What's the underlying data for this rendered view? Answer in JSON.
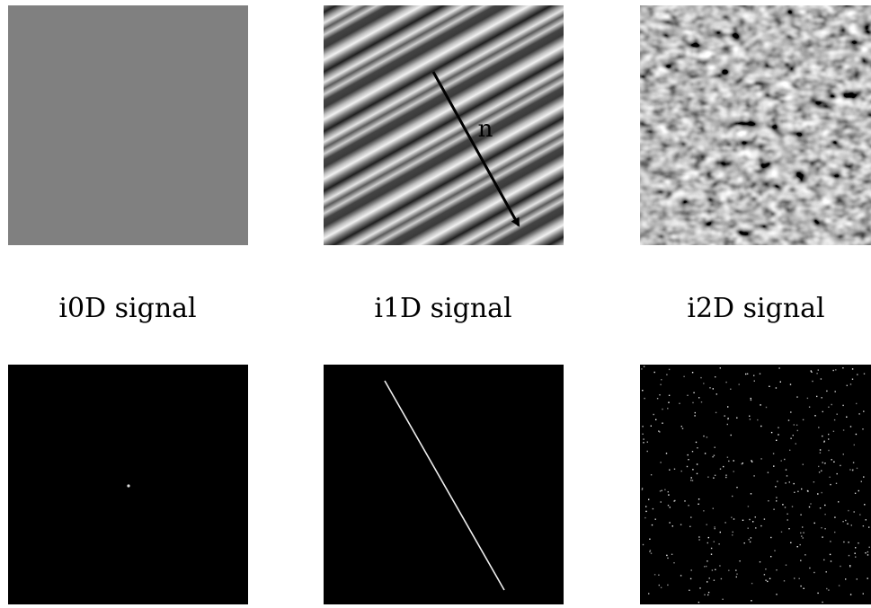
{
  "panels": [
    {
      "label": "i0D signal"
    },
    {
      "label": "i1D signal"
    },
    {
      "label": "i2D signal"
    }
  ],
  "arrow_label": "n"
}
